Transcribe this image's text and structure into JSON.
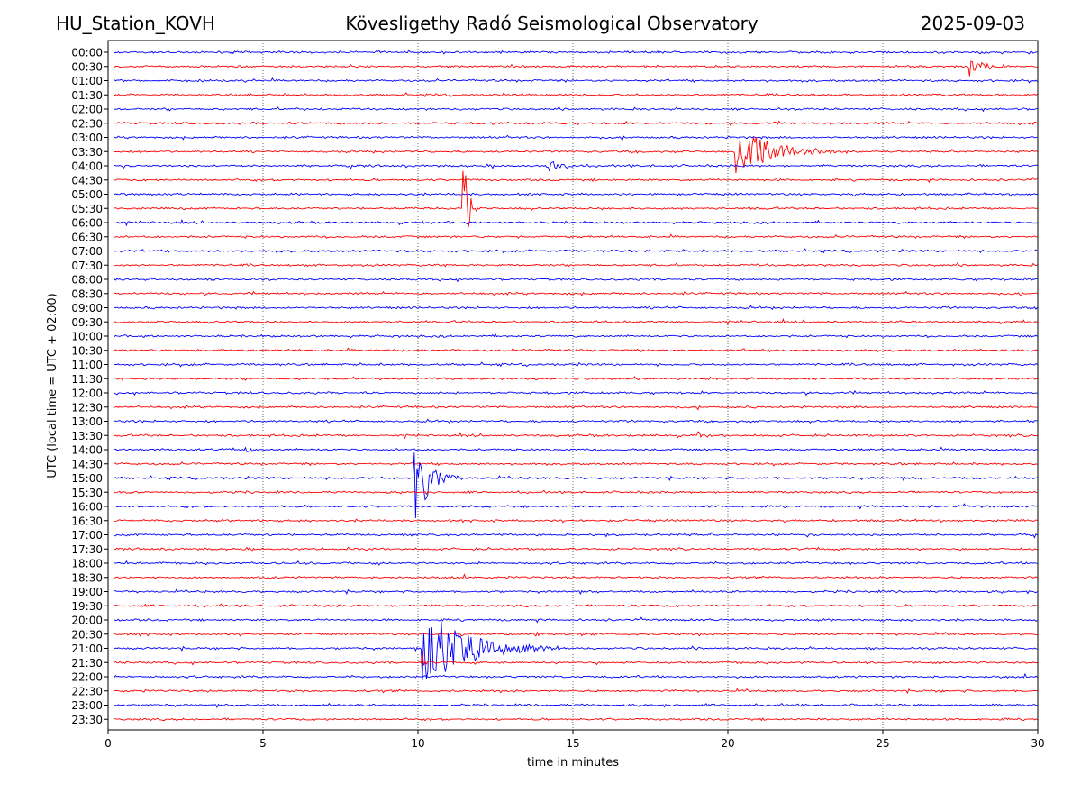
{
  "header": {
    "left": "HU_Station_KOVH",
    "center": "Kövesligethy Radó Seismological Observatory",
    "right": "2025-09-03"
  },
  "colors": {
    "trace_a": "#0000ff",
    "trace_b": "#ff0000",
    "grid": "#000000"
  },
  "chart_data": {
    "type": "line",
    "title": "Kövesligethy Radó Seismological Observatory",
    "xlabel": "time in minutes",
    "ylabel": "UTC (local time = UTC + 02:00)",
    "xlim": [
      0,
      30
    ],
    "xticks": [
      0,
      5,
      10,
      15,
      20,
      25,
      30
    ],
    "grid": "vertical dotted at x ticks",
    "rows": [
      "00:00",
      "00:30",
      "01:00",
      "01:30",
      "02:00",
      "02:30",
      "03:00",
      "03:30",
      "04:00",
      "04:30",
      "05:00",
      "05:30",
      "06:00",
      "06:30",
      "07:00",
      "07:30",
      "08:00",
      "08:30",
      "09:00",
      "09:30",
      "10:00",
      "10:30",
      "11:00",
      "11:30",
      "12:00",
      "12:30",
      "13:00",
      "13:30",
      "14:00",
      "14:30",
      "15:00",
      "15:30",
      "16:00",
      "16:30",
      "17:00",
      "17:30",
      "18:00",
      "18:30",
      "19:00",
      "19:30",
      "20:00",
      "20:30",
      "21:00",
      "21:30",
      "22:00",
      "22:30",
      "23:00",
      "23:30"
    ],
    "row_colors": [
      "trace_a",
      "trace_b"
    ],
    "events": [
      {
        "row": "00:30",
        "start_min": 27.8,
        "peak_rows": 0.9,
        "duration_min": 1.3,
        "color": "trace_b"
      },
      {
        "row": "03:30",
        "start_min": 20.25,
        "peak_rows": 1.9,
        "duration_min": 3.5,
        "color": "trace_b"
      },
      {
        "row": "04:00",
        "start_min": 14.15,
        "peak_rows": 0.7,
        "duration_min": 1.3,
        "color": "trace_a"
      },
      {
        "row": "05:30",
        "start_min": 11.42,
        "peak_rows": 5.0,
        "duration_min": 0.5,
        "color": "trace_b"
      },
      {
        "row": "13:30",
        "start_min": 19.0,
        "peak_rows": 0.3,
        "duration_min": 0.6,
        "color": "trace_b"
      },
      {
        "row": "14:00",
        "start_min": 4.4,
        "peak_rows": 0.35,
        "duration_min": 0.5,
        "color": "trace_a"
      },
      {
        "row": "15:00",
        "start_min": 9.85,
        "peak_rows": 3.4,
        "duration_min": 1.6,
        "color": "trace_a"
      },
      {
        "row": "20:30",
        "start_min": 13.8,
        "peak_rows": 0.3,
        "duration_min": 0.4,
        "color": "trace_b"
      },
      {
        "row": "21:00",
        "start_min": 10.1,
        "peak_rows": 3.0,
        "duration_min": 4.5,
        "color": "trace_a"
      },
      {
        "row": "21:30",
        "start_min": 10.12,
        "peak_rows": 1.9,
        "duration_min": 0.3,
        "color": "trace_b"
      }
    ]
  }
}
